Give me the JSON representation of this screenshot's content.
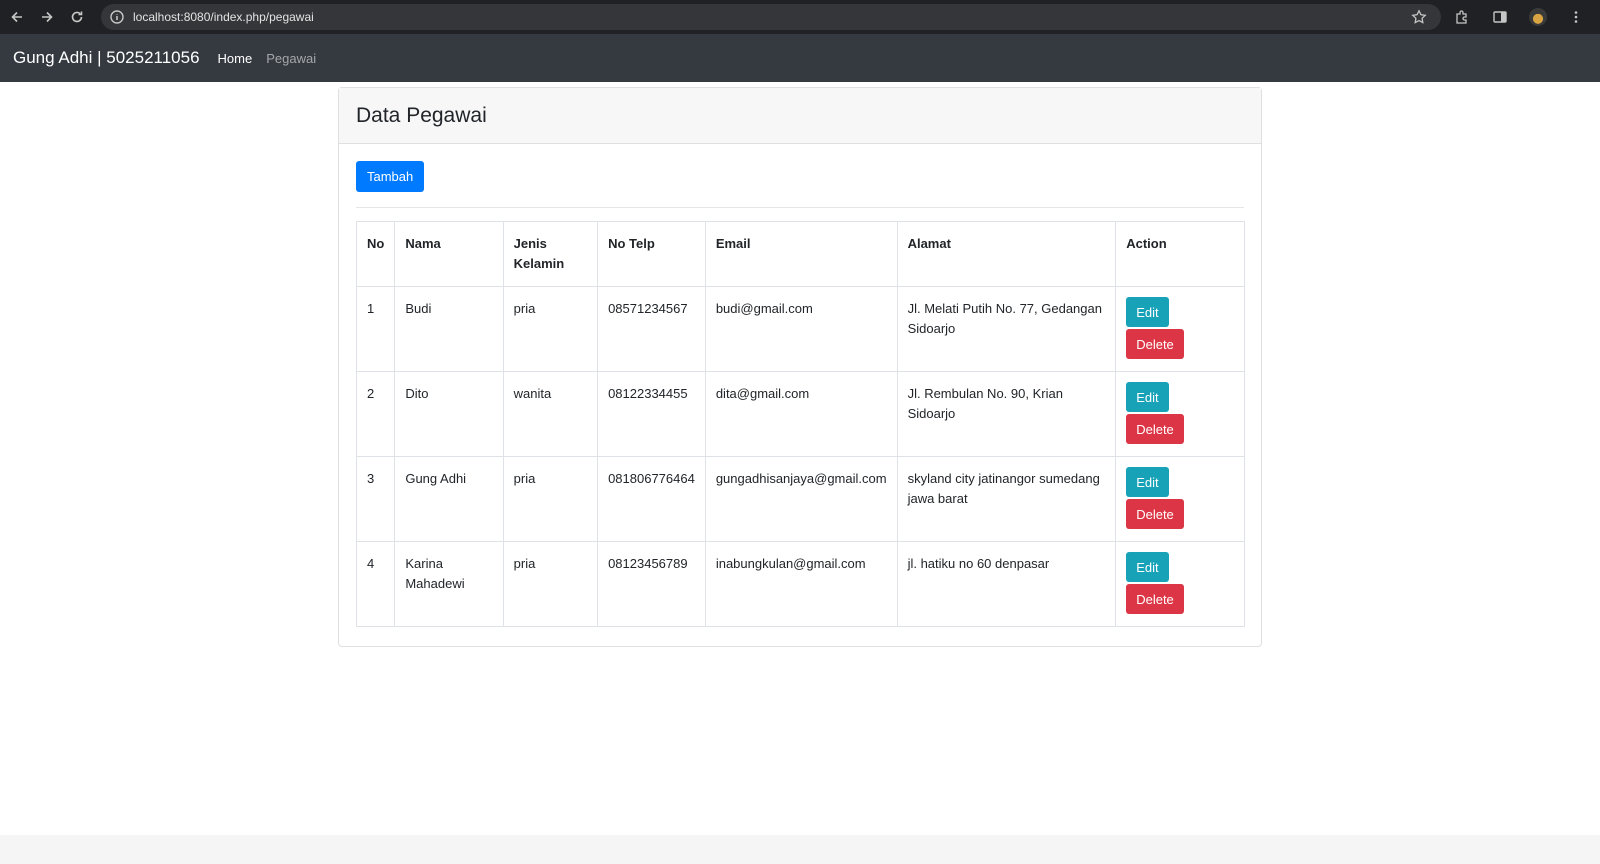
{
  "browser": {
    "url": "localhost:8080/index.php/pegawai"
  },
  "navbar": {
    "brand": "Gung Adhi | 5025211056",
    "links": [
      {
        "label": "Home",
        "active": true
      },
      {
        "label": "Pegawai",
        "active": false
      }
    ]
  },
  "card": {
    "title": "Data Pegawai",
    "add_button": "Tambah"
  },
  "table": {
    "headers": [
      "No",
      "Nama",
      "Jenis Kelamin",
      "No Telp",
      "Email",
      "Alamat",
      "Action"
    ],
    "rows": [
      {
        "no": "1",
        "nama": "Budi",
        "jk": "pria",
        "telp": "08571234567",
        "email": "budi@gmail.com",
        "alamat": "Jl. Melati Putih No. 77, Gedangan Sidoarjo"
      },
      {
        "no": "2",
        "nama": "Dito",
        "jk": "wanita",
        "telp": "08122334455",
        "email": "dita@gmail.com",
        "alamat": "Jl. Rembulan No. 90, Krian Sidoarjo"
      },
      {
        "no": "3",
        "nama": "Gung Adhi",
        "jk": "pria",
        "telp": "081806776464",
        "email": "gungadhisanjaya@gmail.com",
        "alamat": "skyland city jatinangor sumedang jawa barat"
      },
      {
        "no": "4",
        "nama": "Karina Mahadewi",
        "jk": "pria",
        "telp": "08123456789",
        "email": "inabungkulan@gmail.com",
        "alamat": "jl. hatiku no 60 denpasar"
      }
    ],
    "edit_label": "Edit",
    "delete_label": "Delete"
  },
  "colors": {
    "primary": "#007bff",
    "info": "#17a2b8",
    "danger": "#dc3545",
    "navbar": "#343a40"
  }
}
